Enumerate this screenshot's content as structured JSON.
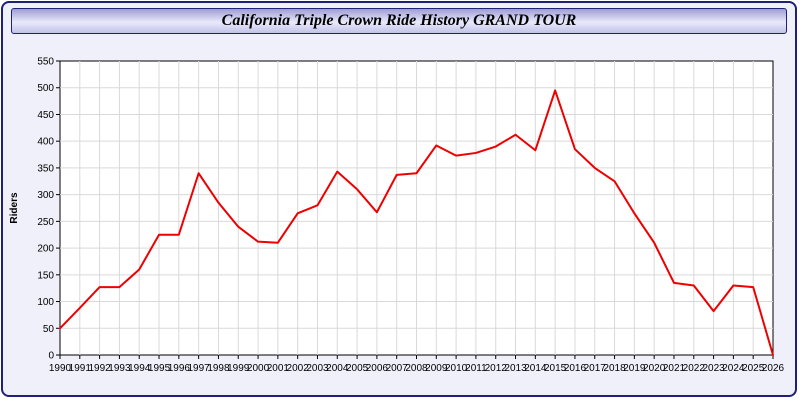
{
  "window": {
    "title": "California Triple Crown Ride History GRAND TOUR"
  },
  "colors": {
    "line": "#ee0000",
    "grid": "#d9d9d9",
    "plot_bg": "#ffffff",
    "plot_border": "#000000",
    "page_bg": "#f0f0fa",
    "title_border": "#20207a",
    "text": "#000000"
  },
  "chart_data": {
    "type": "line",
    "title": "California Triple Crown Ride History GRAND TOUR",
    "xlabel": "",
    "ylabel": "Riders",
    "ylim": [
      0,
      550
    ],
    "ytick_step": 50,
    "grid": true,
    "legend": "none",
    "x": [
      1990,
      1991,
      1992,
      1993,
      1994,
      1995,
      1996,
      1997,
      1998,
      1999,
      2000,
      2001,
      2002,
      2003,
      2004,
      2005,
      2006,
      2007,
      2008,
      2009,
      2010,
      2011,
      2012,
      2013,
      2014,
      2015,
      2016,
      2017,
      2018,
      2019,
      2020,
      2021,
      2022,
      2023,
      2024,
      2025,
      2026
    ],
    "series": [
      {
        "name": "Riders",
        "color": "#ee0000",
        "values": [
          50,
          88,
          127,
          127,
          160,
          225,
          225,
          340,
          285,
          240,
          212,
          210,
          265,
          280,
          343,
          310,
          267,
          337,
          340,
          392,
          373,
          378,
          390,
          412,
          383,
          495,
          385,
          350,
          325,
          265,
          210,
          135,
          130,
          82,
          130,
          127,
          0
        ]
      }
    ]
  }
}
